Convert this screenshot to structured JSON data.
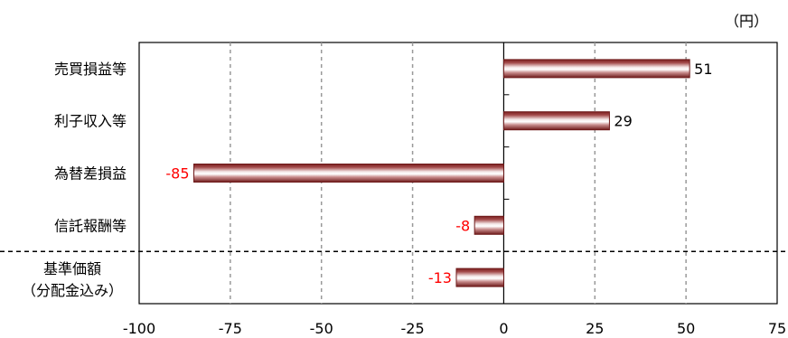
{
  "chart_data": {
    "type": "bar",
    "orientation": "horizontal",
    "unit_label": "（円）",
    "categories": [
      "売買損益等",
      "利子収入等",
      "為替差損益",
      "信託報酬等",
      "基準価額\n（分配金込み）"
    ],
    "values": [
      51,
      29,
      -85,
      -8,
      -13
    ],
    "value_labels": [
      "51",
      "29",
      "-85",
      "-8",
      "-13"
    ],
    "xlim": [
      -100,
      75
    ],
    "xticks": [
      "-100",
      "-75",
      "-50",
      "-25",
      "0",
      "25",
      "50",
      "75"
    ],
    "grid": "vertical dashed",
    "positive_label_color": "#000000",
    "negative_label_color": "#ff0000",
    "bar_color": "#8b2a2a",
    "separator": "dashed line above last category"
  }
}
